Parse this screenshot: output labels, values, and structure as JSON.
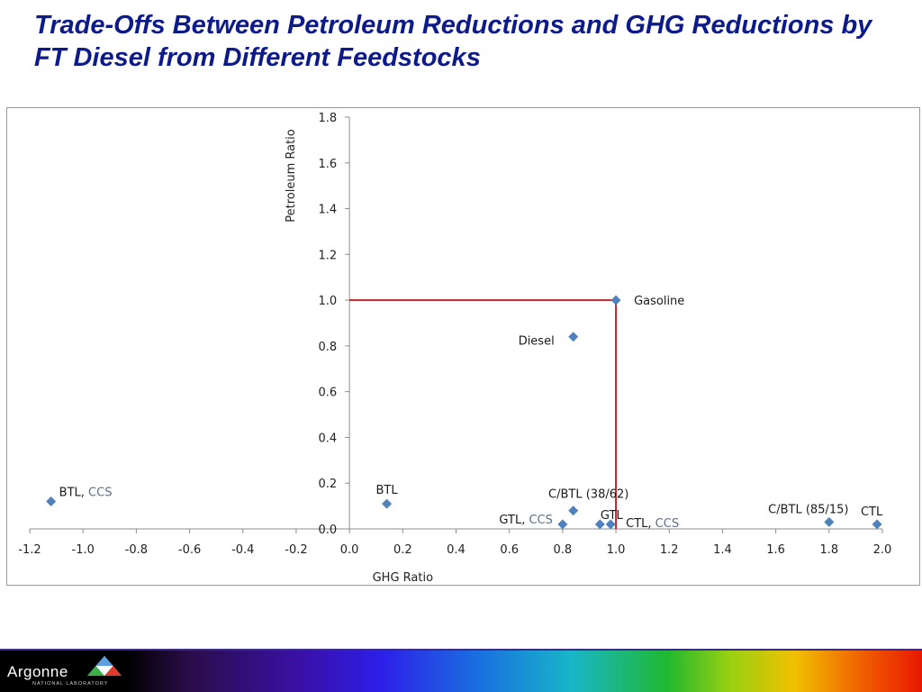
{
  "slide": {
    "title": "Trade-Offs Between Petroleum Reductions and GHG Reductions by FT Diesel from Different Feedstocks"
  },
  "footer": {
    "logo_text": "Argonne",
    "logo_subtext": "NATIONAL LABORATORY"
  },
  "colors": {
    "title": "#0d1a8a",
    "marker": "#4f81bd",
    "guide_line": "#c0272d",
    "ccs_text": "#5a6e8c"
  },
  "chart_data": {
    "type": "scatter",
    "title": "",
    "xlabel": "GHG Ratio",
    "ylabel": "Petroleum Ratio",
    "xlim": [
      -1.2,
      2.0
    ],
    "ylim": [
      0.0,
      1.8
    ],
    "xticks": [
      "-1.2",
      "-1.0",
      "-0.8",
      "-0.6",
      "-0.4",
      "-0.2",
      "0.0",
      "0.2",
      "0.4",
      "0.6",
      "0.8",
      "1.0",
      "1.2",
      "1.4",
      "1.6",
      "1.8",
      "2.0"
    ],
    "yticks": [
      "0.0",
      "0.2",
      "0.4",
      "0.6",
      "0.8",
      "1.0",
      "1.2",
      "1.4",
      "1.6",
      "1.8"
    ],
    "grid": false,
    "legend": "none",
    "points": [
      {
        "label": "BTL",
        "suffix": "CCS",
        "x": -1.12,
        "y": 0.12
      },
      {
        "label": "BTL",
        "suffix": "",
        "x": 0.14,
        "y": 0.11
      },
      {
        "label": "GTL",
        "suffix": "CCS",
        "x": 0.8,
        "y": 0.02
      },
      {
        "label": "C/BTL (38/62)",
        "suffix": "",
        "x": 0.84,
        "y": 0.08
      },
      {
        "label": "GTL",
        "suffix": "",
        "x": 0.94,
        "y": 0.02
      },
      {
        "label": "CTL",
        "suffix": "CCS",
        "x": 0.98,
        "y": 0.02
      },
      {
        "label": "Diesel",
        "suffix": "",
        "x": 0.84,
        "y": 0.84
      },
      {
        "label": "Gasoline",
        "suffix": "",
        "x": 1.0,
        "y": 1.0
      },
      {
        "label": "C/BTL (85/15)",
        "suffix": "",
        "x": 1.8,
        "y": 0.03
      },
      {
        "label": "CTL",
        "suffix": "",
        "x": 1.98,
        "y": 0.02
      }
    ],
    "reference_lines": [
      {
        "from": [
          0.0,
          1.0
        ],
        "to": [
          1.0,
          1.0
        ]
      },
      {
        "from": [
          1.0,
          1.0
        ],
        "to": [
          1.0,
          0.0
        ]
      }
    ]
  }
}
